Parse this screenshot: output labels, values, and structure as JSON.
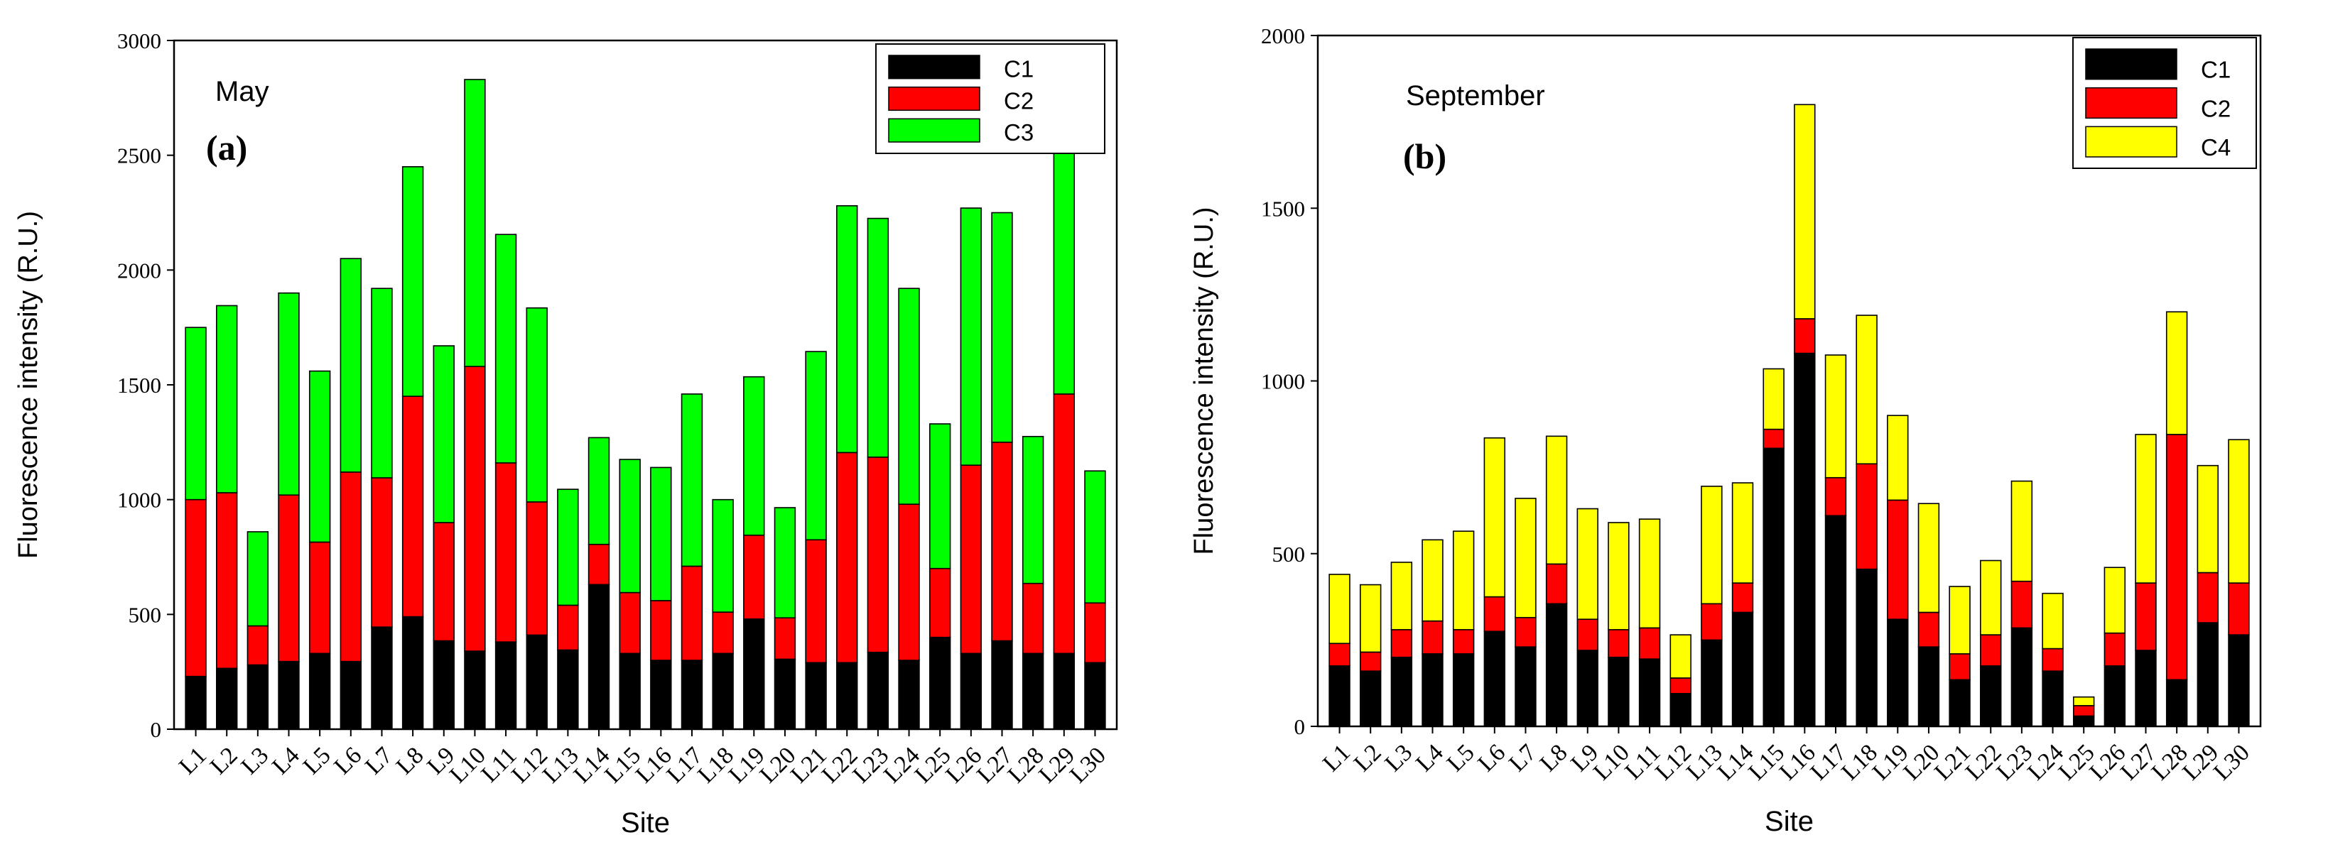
{
  "colors": {
    "C1": "#000000",
    "C2": "#ff0000",
    "C3": "#00ff00",
    "C4": "#ffff00",
    "axis": "#000000",
    "background": "#ffffff"
  },
  "chart_data": [
    {
      "type": "bar",
      "stacked": true,
      "panel_label": "(a)",
      "title": "May",
      "xlabel": "Site",
      "ylabel": "Fluorescence intensity (R.U.)",
      "ylim": [
        0,
        3000
      ],
      "yticks": [
        "0",
        "500",
        "1000",
        "1500",
        "2000",
        "2500",
        "3000"
      ],
      "legend_position": "top-right",
      "categories": [
        "L1",
        "L2",
        "L3",
        "L4",
        "L5",
        "L6",
        "L7",
        "L8",
        "L9",
        "L10",
        "L11",
        "L12",
        "L13",
        "L14",
        "L15",
        "L16",
        "L17",
        "L18",
        "L19",
        "L20",
        "L21",
        "L22",
        "L23",
        "L24",
        "L25",
        "L26",
        "L27",
        "L28",
        "L29",
        "L30"
      ],
      "series": [
        {
          "name": "C1",
          "color": "#000000",
          "values": [
            230,
            265,
            280,
            295,
            330,
            295,
            445,
            490,
            385,
            340,
            380,
            410,
            345,
            630,
            330,
            300,
            300,
            330,
            480,
            305,
            290,
            290,
            335,
            300,
            400,
            330,
            385,
            330,
            330,
            290
          ]
        },
        {
          "name": "C2",
          "color": "#ff0000",
          "values": [
            770,
            765,
            170,
            725,
            485,
            825,
            650,
            960,
            515,
            1240,
            780,
            580,
            195,
            175,
            265,
            260,
            410,
            180,
            365,
            180,
            535,
            915,
            850,
            680,
            300,
            820,
            865,
            305,
            1130,
            260
          ]
        },
        {
          "name": "C3",
          "color": "#00ff00",
          "values": [
            750,
            815,
            410,
            880,
            745,
            930,
            825,
            1000,
            770,
            1250,
            995,
            845,
            505,
            465,
            580,
            580,
            750,
            490,
            690,
            480,
            820,
            1075,
            1040,
            940,
            630,
            1120,
            1000,
            640,
            1110,
            575
          ]
        }
      ]
    },
    {
      "type": "bar",
      "stacked": true,
      "panel_label": "(b)",
      "title": "September",
      "xlabel": "Site",
      "ylabel": "Fluorescence intensity (R.U.)",
      "ylim": [
        0,
        2000
      ],
      "yticks": [
        "0",
        "500",
        "1000",
        "1500",
        "2000"
      ],
      "legend_position": "top-right",
      "categories": [
        "L1",
        "L2",
        "L3",
        "L4",
        "L5",
        "L6",
        "L7",
        "L8",
        "L9",
        "L10",
        "L11",
        "L12",
        "L13",
        "L14",
        "L15",
        "L16",
        "L17",
        "L18",
        "L19",
        "L20",
        "L21",
        "L22",
        "L23",
        "L24",
        "L25",
        "L26",
        "L27",
        "L28",
        "L29",
        "L30"
      ],
      "series": [
        {
          "name": "C1",
          "color": "#000000",
          "values": [
            175,
            160,
            200,
            210,
            210,
            275,
            230,
            355,
            220,
            200,
            195,
            95,
            250,
            330,
            805,
            1080,
            610,
            455,
            310,
            230,
            135,
            175,
            285,
            160,
            30,
            175,
            220,
            135,
            300,
            265
          ]
        },
        {
          "name": "C2",
          "color": "#ff0000",
          "values": [
            65,
            55,
            80,
            95,
            70,
            100,
            85,
            115,
            90,
            80,
            90,
            45,
            105,
            85,
            55,
            100,
            110,
            305,
            345,
            100,
            75,
            90,
            135,
            65,
            30,
            95,
            195,
            710,
            145,
            150
          ]
        },
        {
          "name": "C4",
          "color": "#ffff00",
          "values": [
            200,
            195,
            195,
            235,
            285,
            460,
            345,
            370,
            320,
            310,
            315,
            125,
            340,
            290,
            175,
            620,
            355,
            430,
            245,
            315,
            195,
            215,
            290,
            160,
            25,
            190,
            430,
            355,
            310,
            415
          ]
        }
      ]
    }
  ]
}
